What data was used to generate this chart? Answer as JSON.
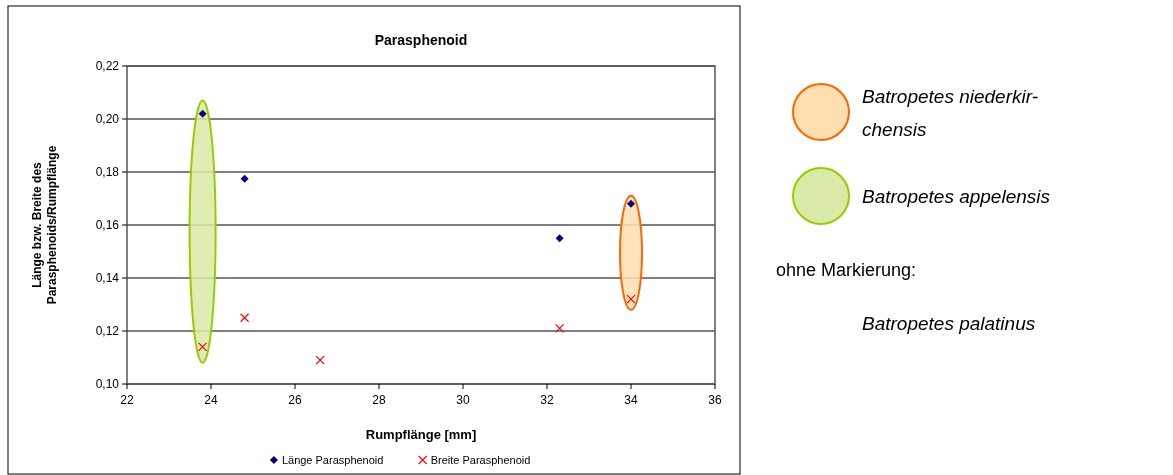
{
  "chart_data": {
    "type": "scatter",
    "title": "Parasphenoid",
    "xlabel": "Rumpflänge [mm]",
    "ylabel": "Länge bzw. Breite des Parasphenoids/Rumpflänge",
    "xlim": [
      22,
      36
    ],
    "xticks": [
      22,
      24,
      26,
      28,
      30,
      32,
      34,
      36
    ],
    "ylim": [
      0.1,
      0.22
    ],
    "yticks": [
      {
        "value": 0.1,
        "label": "0,10"
      },
      {
        "value": 0.12,
        "label": "0,12"
      },
      {
        "value": 0.14,
        "label": "0,14"
      },
      {
        "value": 0.16,
        "label": "0,16"
      },
      {
        "value": 0.18,
        "label": "0,18"
      },
      {
        "value": 0.2,
        "label": "0,20"
      },
      {
        "value": 0.22,
        "label": "0,22"
      }
    ],
    "grid": "y",
    "legend": "bottom",
    "series": [
      {
        "name": "Länge Parasphenoid",
        "color": "#000080",
        "marker": "diamond",
        "x": [
          23.8,
          24.8,
          32.3,
          34.0
        ],
        "values": [
          0.202,
          0.1775,
          0.155,
          0.168
        ]
      },
      {
        "name": "Breite Parasphenoid",
        "color": "#ff0000",
        "marker": "cross",
        "x": [
          23.8,
          24.8,
          26.6,
          32.3,
          34.0
        ],
        "values": [
          0.114,
          0.125,
          0.109,
          0.121,
          0.132
        ]
      }
    ],
    "annotations": [
      "Batropetes niederkir-",
      "chensis",
      "Batropetes appelensis",
      "ohne Markierung:",
      "Batropetes palatinus"
    ]
  }
}
